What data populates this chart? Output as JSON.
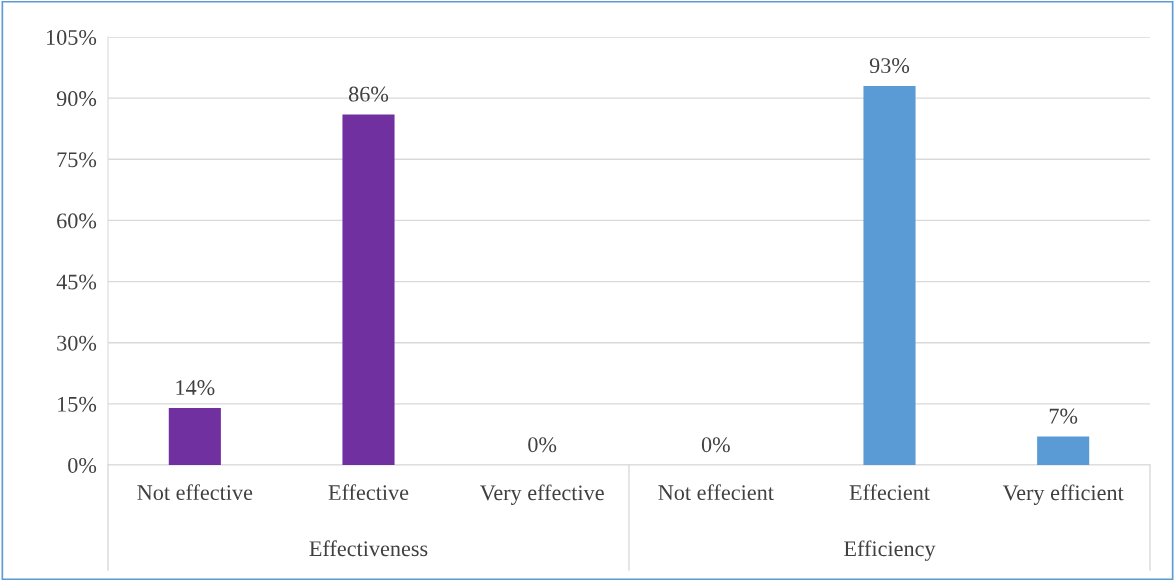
{
  "chart_data": {
    "type": "bar",
    "categories": [
      "Not effective",
      "Effective",
      "Very effective",
      "Not effecient",
      "Effecient",
      "Very efficient"
    ],
    "values": [
      14,
      86,
      0,
      0,
      93,
      7
    ],
    "colors": [
      "#7030a0",
      "#7030a0",
      "#7030a0",
      "#5b9bd5",
      "#5b9bd5",
      "#5b9bd5"
    ],
    "value_labels": [
      "14%",
      "86%",
      "0%",
      "0%",
      "93%",
      "7%"
    ],
    "annotations": [
      "Effectiveness",
      "Efficiency"
    ],
    "ylim": [
      0,
      105
    ],
    "yticks": [
      {
        "value": 0,
        "label": "0%"
      },
      {
        "value": 15,
        "label": "15%"
      },
      {
        "value": 30,
        "label": "30%"
      },
      {
        "value": 45,
        "label": "45%"
      },
      {
        "value": 60,
        "label": "60%"
      },
      {
        "value": 75,
        "label": "75%"
      },
      {
        "value": 90,
        "label": "90%"
      },
      {
        "value": 105,
        "label": "105%"
      }
    ],
    "grid": "y"
  }
}
